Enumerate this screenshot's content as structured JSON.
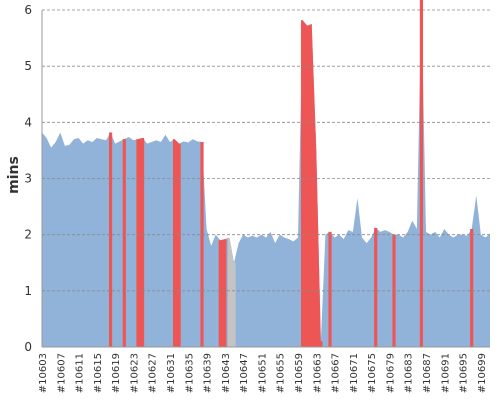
{
  "chart_data": {
    "type": "area",
    "title": "",
    "xlabel": "",
    "ylabel": "mins",
    "ylim": [
      0,
      6
    ],
    "yticks": [
      0,
      1,
      2,
      3,
      4,
      5,
      6
    ],
    "grid": true,
    "legend": "none",
    "x_first": 10603,
    "x_last": 10701,
    "tick_labels": [
      "#10603",
      "#10607",
      "#10611",
      "#10615",
      "#10619",
      "#10623",
      "#10627",
      "#10631",
      "#10635",
      "#10639",
      "#10643",
      "#10647",
      "#10651",
      "#10655",
      "#10659",
      "#10663",
      "#10667",
      "#10671",
      "#10675",
      "#10679",
      "#10683",
      "#10687",
      "#10691",
      "#10695",
      "#10699"
    ],
    "colors": {
      "normal": "#92b3d9",
      "failed": "#ee5555",
      "aborted": "#c4c4c4",
      "grid": "#8a8a8a",
      "axis": "#999999",
      "text": "#333333"
    },
    "values": [
      3.82,
      3.72,
      3.55,
      3.65,
      3.82,
      3.58,
      3.6,
      3.7,
      3.72,
      3.62,
      3.68,
      3.65,
      3.72,
      3.7,
      3.68,
      3.82,
      3.62,
      3.66,
      3.7,
      3.74,
      3.68,
      3.7,
      3.72,
      3.62,
      3.65,
      3.68,
      3.65,
      3.78,
      3.65,
      3.7,
      3.62,
      3.66,
      3.64,
      3.7,
      3.66,
      3.65,
      2.1,
      1.8,
      2.0,
      1.9,
      1.92,
      1.95,
      1.5,
      1.85,
      2.0,
      1.95,
      1.98,
      1.95,
      2.0,
      1.95,
      2.05,
      1.85,
      2.0,
      1.95,
      1.92,
      1.88,
      1.95,
      5.82,
      5.72,
      5.75,
      3.5,
      0.1,
      2.0,
      2.05,
      1.95,
      2.0,
      1.92,
      2.08,
      2.05,
      2.65,
      1.95,
      1.85,
      1.95,
      2.12,
      2.05,
      2.08,
      2.05,
      2.0,
      2.0,
      1.95,
      2.05,
      2.25,
      2.1,
      6.2,
      2.05,
      2.0,
      2.05,
      1.95,
      2.1,
      2.0,
      1.95,
      2.0,
      2.0,
      1.98,
      2.1,
      2.7,
      2.0,
      1.95,
      2.02
    ],
    "failed_ranges": [
      [
        10618,
        10618
      ],
      [
        10621,
        10621
      ],
      [
        10624,
        10625
      ],
      [
        10632,
        10633
      ],
      [
        10638,
        10638
      ],
      [
        10642,
        10643
      ],
      [
        10660,
        10664
      ],
      [
        10666,
        10666
      ],
      [
        10676,
        10676
      ],
      [
        10680,
        10680
      ],
      [
        10686,
        10686
      ],
      [
        10697,
        10697
      ]
    ],
    "aborted_ranges": [
      [
        10644,
        10645
      ]
    ]
  }
}
